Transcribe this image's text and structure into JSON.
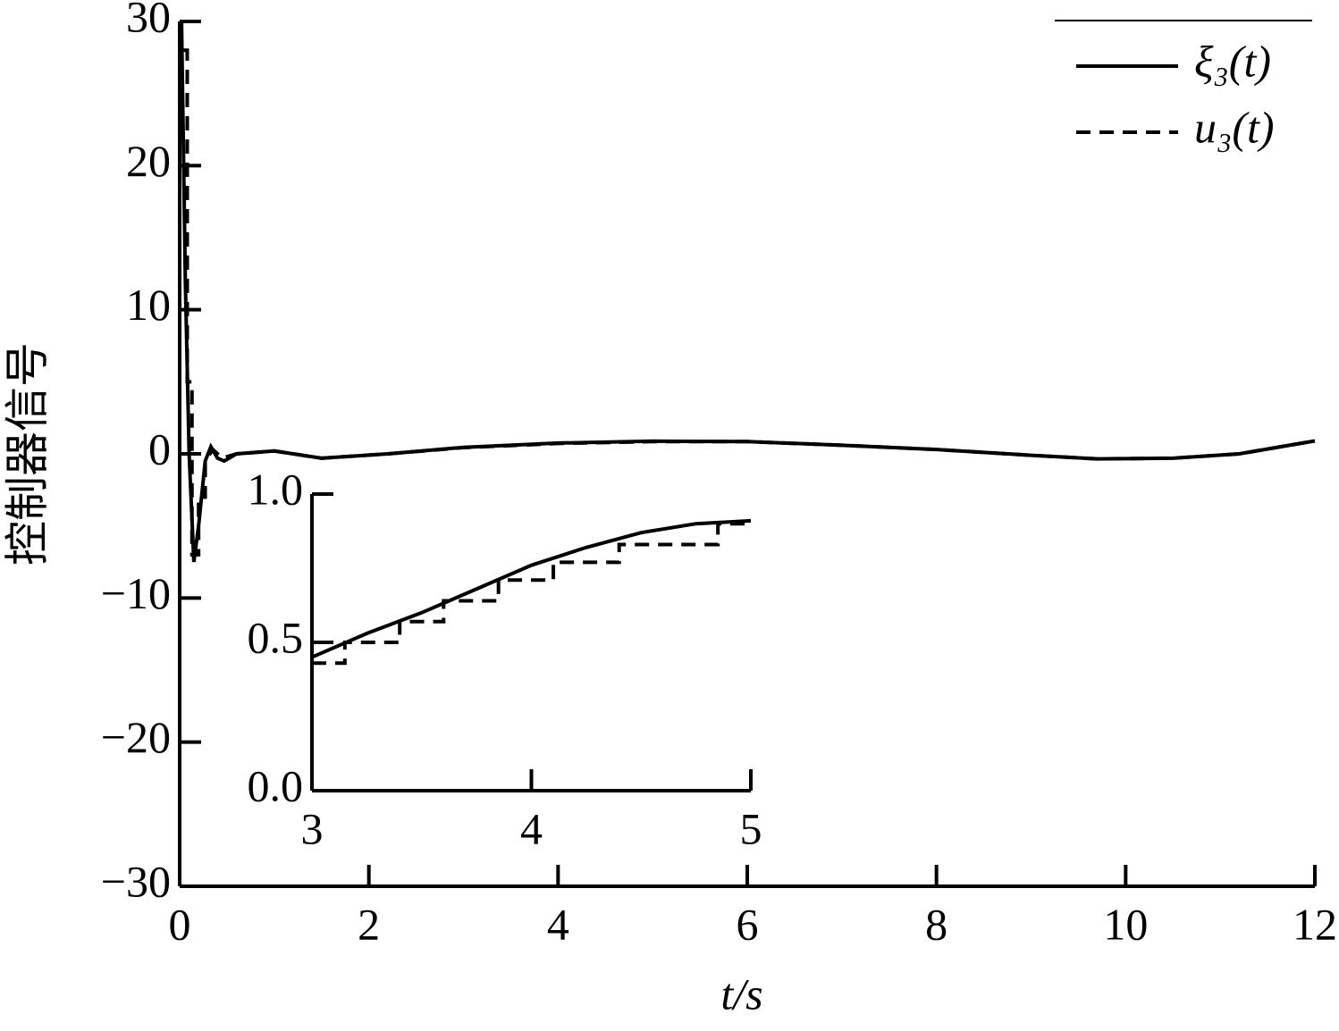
{
  "chart_data": [
    {
      "type": "line",
      "xlabel": "t/s",
      "ylabel": "控制器信号",
      "xlim": [
        0,
        12
      ],
      "ylim": [
        -30,
        30
      ],
      "xticks": [
        0,
        2,
        4,
        6,
        8,
        10,
        12
      ],
      "yticks": [
        {
          "value": -30,
          "label": "−30"
        },
        {
          "value": -20,
          "label": "−20"
        },
        {
          "value": -10,
          "label": "−10"
        },
        0,
        10,
        20,
        30
      ],
      "legend": "upper right",
      "series": [
        {
          "name": "ξ₃(t)",
          "color": "#000000",
          "dash": "solid",
          "x": [
            0.02,
            0.06,
            0.1,
            0.15,
            0.2,
            0.27,
            0.33,
            0.4,
            0.47,
            0.6,
            1.0,
            1.5,
            2.2,
            3,
            4,
            5,
            6,
            7,
            8,
            9,
            9.7,
            10.5,
            11.2,
            12
          ],
          "values": [
            30,
            12,
            0,
            -7.5,
            -5,
            -0.5,
            0.5,
            -0.3,
            -0.5,
            0,
            0.2,
            -0.3,
            0,
            0.45,
            0.75,
            0.88,
            0.85,
            0.6,
            0.3,
            -0.1,
            -0.35,
            -0.3,
            0,
            0.9
          ]
        },
        {
          "name": "u₃(t)",
          "color": "#000000",
          "dash": "dashed",
          "x": [
            0.04,
            0.08,
            0.08,
            0.13,
            0.13,
            0.2,
            0.2,
            0.27,
            0.27,
            0.35,
            0.45,
            0.6,
            1.0,
            1.5,
            2.2,
            3,
            4,
            5,
            6,
            7,
            8,
            9,
            9.7,
            10.5,
            11.2,
            12
          ],
          "values": [
            28,
            28,
            5,
            5,
            -7,
            -7,
            -3,
            -3,
            -0.5,
            0.3,
            -0.3,
            0,
            0.2,
            -0.3,
            0,
            0.43,
            0.72,
            0.85,
            0.85,
            0.6,
            0.3,
            -0.1,
            -0.35,
            -0.3,
            0,
            0.9
          ]
        }
      ]
    },
    {
      "type": "line",
      "xlim": [
        3,
        5
      ],
      "ylim": [
        0,
        1
      ],
      "xticks": [
        3,
        4,
        5
      ],
      "yticks": [
        {
          "value": 0,
          "label": "0.0"
        },
        0.5,
        {
          "value": 1,
          "label": "1.0"
        }
      ],
      "series": [
        {
          "color": "#000000",
          "dash": "solid",
          "x": [
            3,
            3.25,
            3.5,
            3.75,
            4,
            4.25,
            4.5,
            4.75,
            5
          ],
          "values": [
            0.45,
            0.53,
            0.6,
            0.68,
            0.76,
            0.82,
            0.87,
            0.9,
            0.91
          ]
        },
        {
          "color": "#000000",
          "dash": "dashed",
          "x": [
            3,
            3.15,
            3.15,
            3.4,
            3.4,
            3.6,
            3.6,
            3.85,
            3.85,
            4.1,
            4.1,
            4.4,
            4.4,
            4.85,
            4.85,
            5
          ],
          "values": [
            0.43,
            0.43,
            0.5,
            0.5,
            0.57,
            0.57,
            0.64,
            0.64,
            0.71,
            0.71,
            0.77,
            0.77,
            0.83,
            0.83,
            0.9,
            0.9
          ]
        }
      ]
    }
  ]
}
